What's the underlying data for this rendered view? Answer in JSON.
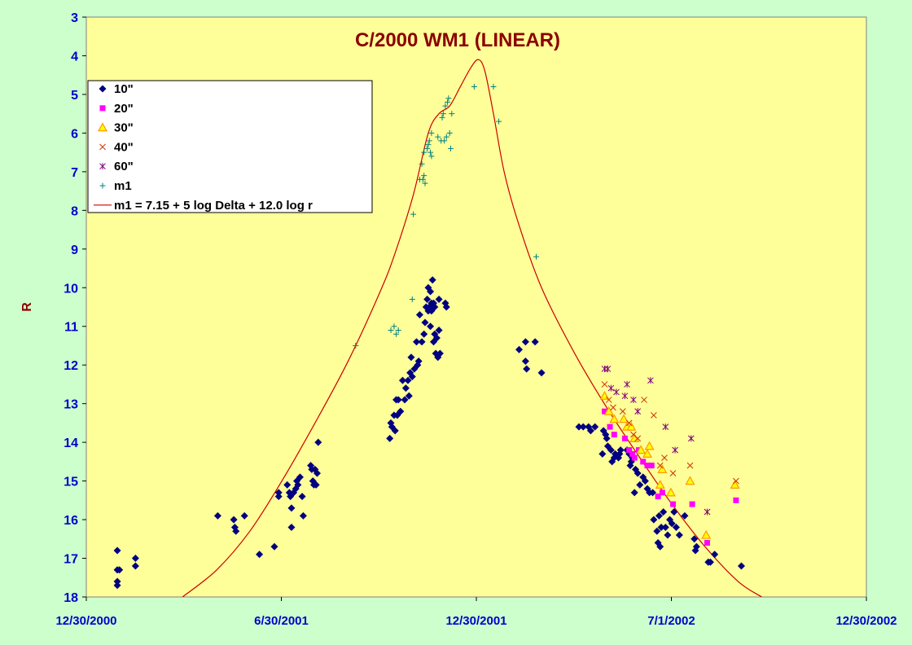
{
  "chart_data": {
    "type": "scatter",
    "title": "C/2000 WM1 (LINEAR)",
    "xlabel": "",
    "ylabel": "R",
    "x_axis": {
      "type": "date",
      "range": [
        "2000-12-30",
        "2002-12-30"
      ],
      "ticks": [
        "12/30/2000",
        "6/30/2001",
        "12/30/2001",
        "7/1/2002",
        "12/30/2002"
      ]
    },
    "y_axis": {
      "range": [
        3,
        18
      ],
      "reversed": true,
      "ticks": [
        "3",
        "4",
        "5",
        "6",
        "7",
        "8",
        "9",
        "10",
        "11",
        "12",
        "13",
        "14",
        "15",
        "16",
        "17",
        "18"
      ]
    },
    "grid": false,
    "legend_position": "top-left",
    "colors": {
      "plot_background": "#ffff99",
      "page_background": "#ccffcc",
      "curve": "#cc0000"
    },
    "series": [
      {
        "name": "10\"",
        "marker": "diamond",
        "color": "#000080",
        "points": [
          [
            "2001-01-28",
            16.8
          ],
          [
            "2001-01-28",
            17.3
          ],
          [
            "2001-01-28",
            17.6
          ],
          [
            "2001-01-28",
            17.7
          ],
          [
            "2001-01-30",
            17.3
          ],
          [
            "2001-02-14",
            17.0
          ],
          [
            "2001-02-14",
            17.2
          ],
          [
            "2001-05-02",
            15.9
          ],
          [
            "2001-05-17",
            16.0
          ],
          [
            "2001-05-18",
            16.2
          ],
          [
            "2001-05-19",
            16.3
          ],
          [
            "2001-05-27",
            15.9
          ],
          [
            "2001-06-10",
            16.9
          ],
          [
            "2001-06-24",
            16.7
          ],
          [
            "2001-06-28",
            15.3
          ],
          [
            "2001-06-28",
            15.4
          ],
          [
            "2001-07-06",
            15.1
          ],
          [
            "2001-07-08",
            15.3
          ],
          [
            "2001-07-09",
            15.4
          ],
          [
            "2001-07-10",
            15.7
          ],
          [
            "2001-07-10",
            16.2
          ],
          [
            "2001-07-12",
            15.3
          ],
          [
            "2001-07-14",
            15.2
          ],
          [
            "2001-07-15",
            15.0
          ],
          [
            "2001-07-16",
            15.1
          ],
          [
            "2001-07-18",
            14.9
          ],
          [
            "2001-07-20",
            15.4
          ],
          [
            "2001-07-21",
            15.9
          ],
          [
            "2001-07-28",
            14.6
          ],
          [
            "2001-07-29",
            14.7
          ],
          [
            "2001-07-30",
            15.0
          ],
          [
            "2001-07-31",
            15.1
          ],
          [
            "2001-08-01",
            14.7
          ],
          [
            "2001-08-02",
            15.1
          ],
          [
            "2001-08-03",
            14.8
          ],
          [
            "2001-08-04",
            14.0
          ],
          [
            "2001-10-10",
            13.9
          ],
          [
            "2001-10-11",
            13.5
          ],
          [
            "2001-10-12",
            13.6
          ],
          [
            "2001-10-14",
            13.3
          ],
          [
            "2001-10-15",
            13.7
          ],
          [
            "2001-10-16",
            12.9
          ],
          [
            "2001-10-17",
            13.3
          ],
          [
            "2001-10-18",
            12.9
          ],
          [
            "2001-10-20",
            13.2
          ],
          [
            "2001-10-22",
            12.4
          ],
          [
            "2001-10-24",
            12.9
          ],
          [
            "2001-10-25",
            12.6
          ],
          [
            "2001-10-27",
            12.4
          ],
          [
            "2001-10-28",
            12.8
          ],
          [
            "2001-10-29",
            12.2
          ],
          [
            "2001-10-30",
            11.8
          ],
          [
            "2001-10-31",
            12.3
          ],
          [
            "2001-11-02",
            12.1
          ],
          [
            "2001-11-04",
            11.4
          ],
          [
            "2001-11-05",
            12.0
          ],
          [
            "2001-11-06",
            11.9
          ],
          [
            "2001-11-07",
            10.7
          ],
          [
            "2001-11-09",
            11.4
          ],
          [
            "2001-11-11",
            11.2
          ],
          [
            "2001-11-12",
            10.9
          ],
          [
            "2001-11-13",
            10.5
          ],
          [
            "2001-11-14",
            10.3
          ],
          [
            "2001-11-15",
            10.0
          ],
          [
            "2001-11-15",
            10.6
          ],
          [
            "2001-11-16",
            10.5
          ],
          [
            "2001-11-17",
            11.0
          ],
          [
            "2001-11-17",
            10.1
          ],
          [
            "2001-11-18",
            10.4
          ],
          [
            "2001-11-18",
            10.6
          ],
          [
            "2001-11-19",
            9.8
          ],
          [
            "2001-11-20",
            10.4
          ],
          [
            "2001-11-20",
            11.4
          ],
          [
            "2001-11-21",
            10.5
          ],
          [
            "2001-11-21",
            11.2
          ],
          [
            "2001-11-22",
            11.7
          ],
          [
            "2001-11-23",
            11.3
          ],
          [
            "2001-11-24",
            11.8
          ],
          [
            "2001-11-25",
            10.3
          ],
          [
            "2001-11-25",
            11.1
          ],
          [
            "2001-11-26",
            11.7
          ],
          [
            "2001-12-01",
            10.4
          ],
          [
            "2001-12-02",
            10.5
          ],
          [
            "2002-02-08",
            11.6
          ],
          [
            "2002-02-14",
            11.4
          ],
          [
            "2002-02-14",
            11.9
          ],
          [
            "2002-02-15",
            12.1
          ],
          [
            "2002-02-23",
            11.4
          ],
          [
            "2002-03-01",
            12.2
          ],
          [
            "2002-04-05",
            13.6
          ],
          [
            "2002-04-09",
            13.6
          ],
          [
            "2002-04-14",
            13.6
          ],
          [
            "2002-04-16",
            13.7
          ],
          [
            "2002-04-20",
            13.6
          ],
          [
            "2002-04-27",
            14.3
          ],
          [
            "2002-04-28",
            13.7
          ],
          [
            "2002-04-30",
            13.8
          ],
          [
            "2002-05-01",
            13.9
          ],
          [
            "2002-05-02",
            14.1
          ],
          [
            "2002-05-05",
            14.2
          ],
          [
            "2002-05-06",
            14.5
          ],
          [
            "2002-05-08",
            14.4
          ],
          [
            "2002-05-09",
            14.3
          ],
          [
            "2002-05-12",
            14.4
          ],
          [
            "2002-05-13",
            14.3
          ],
          [
            "2002-05-14",
            14.2
          ],
          [
            "2002-05-20",
            14.2
          ],
          [
            "2002-05-22",
            14.3
          ],
          [
            "2002-05-23",
            14.6
          ],
          [
            "2002-05-24",
            14.5
          ],
          [
            "2002-05-25",
            14.4
          ],
          [
            "2002-05-27",
            15.3
          ],
          [
            "2002-05-28",
            14.7
          ],
          [
            "2002-05-30",
            14.8
          ],
          [
            "2002-06-01",
            15.1
          ],
          [
            "2002-06-04",
            14.9
          ],
          [
            "2002-06-06",
            15.0
          ],
          [
            "2002-06-08",
            15.2
          ],
          [
            "2002-06-10",
            15.3
          ],
          [
            "2002-06-13",
            15.3
          ],
          [
            "2002-06-14",
            16.0
          ],
          [
            "2002-06-17",
            16.3
          ],
          [
            "2002-06-18",
            16.6
          ],
          [
            "2002-06-19",
            15.9
          ],
          [
            "2002-06-20",
            16.7
          ],
          [
            "2002-06-21",
            16.2
          ],
          [
            "2002-06-23",
            15.8
          ],
          [
            "2002-06-25",
            16.2
          ],
          [
            "2002-06-27",
            16.4
          ],
          [
            "2002-06-29",
            16.0
          ],
          [
            "2002-07-01",
            16.1
          ],
          [
            "2002-07-03",
            15.8
          ],
          [
            "2002-07-05",
            16.2
          ],
          [
            "2002-07-08",
            16.4
          ],
          [
            "2002-07-13",
            15.9
          ],
          [
            "2002-07-22",
            16.5
          ],
          [
            "2002-07-23",
            16.8
          ],
          [
            "2002-07-24",
            16.7
          ],
          [
            "2002-08-04",
            17.1
          ],
          [
            "2002-08-06",
            17.1
          ],
          [
            "2002-08-10",
            16.9
          ],
          [
            "2002-09-04",
            17.2
          ]
        ]
      },
      {
        "name": "20\"",
        "marker": "square",
        "color": "#ff00ff",
        "points": [
          [
            "2002-04-29",
            13.2
          ],
          [
            "2002-05-04",
            13.6
          ],
          [
            "2002-05-08",
            13.8
          ],
          [
            "2002-05-18",
            13.9
          ],
          [
            "2002-05-22",
            14.2
          ],
          [
            "2002-05-25",
            14.3
          ],
          [
            "2002-05-27",
            14.4
          ],
          [
            "2002-05-31",
            14.2
          ],
          [
            "2002-06-04",
            14.5
          ],
          [
            "2002-06-08",
            14.6
          ],
          [
            "2002-06-12",
            14.6
          ],
          [
            "2002-06-18",
            15.4
          ],
          [
            "2002-06-22",
            15.3
          ],
          [
            "2002-07-02",
            15.6
          ],
          [
            "2002-07-20",
            15.6
          ],
          [
            "2002-08-03",
            16.6
          ],
          [
            "2002-08-30",
            15.5
          ]
        ]
      },
      {
        "name": "30\"",
        "marker": "triangle",
        "color": "#ff9900",
        "points": [
          [
            "2002-04-29",
            12.8
          ],
          [
            "2002-05-03",
            13.2
          ],
          [
            "2002-05-08",
            13.4
          ],
          [
            "2002-05-17",
            13.4
          ],
          [
            "2002-05-20",
            13.6
          ],
          [
            "2002-05-24",
            13.6
          ],
          [
            "2002-05-27",
            13.9
          ],
          [
            "2002-06-02",
            14.2
          ],
          [
            "2002-06-08",
            14.3
          ],
          [
            "2002-06-10",
            14.1
          ],
          [
            "2002-06-20",
            15.1
          ],
          [
            "2002-06-22",
            14.7
          ],
          [
            "2002-06-30",
            15.3
          ],
          [
            "2002-07-18",
            15.0
          ],
          [
            "2002-08-02",
            16.4
          ],
          [
            "2002-08-29",
            15.1
          ]
        ]
      },
      {
        "name": "40\"",
        "marker": "x",
        "color": "#cc3300",
        "points": [
          [
            "2002-04-29",
            12.5
          ],
          [
            "2002-05-03",
            12.9
          ],
          [
            "2002-05-07",
            13.1
          ],
          [
            "2002-05-16",
            13.2
          ],
          [
            "2002-05-22",
            13.5
          ],
          [
            "2002-05-26",
            13.8
          ],
          [
            "2002-05-30",
            13.9
          ],
          [
            "2002-06-05",
            12.9
          ],
          [
            "2002-06-14",
            13.3
          ],
          [
            "2002-06-20",
            14.6
          ],
          [
            "2002-06-24",
            14.4
          ],
          [
            "2002-07-02",
            14.8
          ],
          [
            "2002-07-18",
            14.6
          ],
          [
            "2002-08-03",
            15.8
          ],
          [
            "2002-08-30",
            15.0
          ]
        ]
      },
      {
        "name": "60\"",
        "marker": "star",
        "color": "#800080",
        "points": [
          [
            "2002-04-29",
            12.1
          ],
          [
            "2002-05-02",
            12.1
          ],
          [
            "2002-05-05",
            12.6
          ],
          [
            "2002-05-10",
            12.7
          ],
          [
            "2002-05-18",
            12.8
          ],
          [
            "2002-05-20",
            12.5
          ],
          [
            "2002-05-26",
            12.9
          ],
          [
            "2002-05-30",
            13.2
          ],
          [
            "2002-06-11",
            12.4
          ],
          [
            "2002-06-25",
            13.6
          ],
          [
            "2002-07-04",
            14.2
          ],
          [
            "2002-07-19",
            13.9
          ],
          [
            "2002-08-03",
            15.8
          ]
        ]
      },
      {
        "name": "m1",
        "marker": "plus",
        "color": "#008080",
        "points": [
          [
            "2001-09-08",
            11.5
          ],
          [
            "2001-10-11",
            11.1
          ],
          [
            "2001-10-14",
            11.0
          ],
          [
            "2001-10-16",
            11.2
          ],
          [
            "2001-10-18",
            11.1
          ],
          [
            "2001-10-31",
            10.3
          ],
          [
            "2001-11-01",
            8.1
          ],
          [
            "2001-11-07",
            7.2
          ],
          [
            "2001-11-09",
            6.8
          ],
          [
            "2001-11-10",
            7.2
          ],
          [
            "2001-11-11",
            7.1
          ],
          [
            "2001-11-12",
            7.3
          ],
          [
            "2001-11-11",
            6.5
          ],
          [
            "2001-11-14",
            6.4
          ],
          [
            "2001-11-15",
            6.3
          ],
          [
            "2001-11-16",
            6.2
          ],
          [
            "2001-11-17",
            6.5
          ],
          [
            "2001-11-18",
            6.6
          ],
          [
            "2001-11-18",
            6.0
          ],
          [
            "2001-11-24",
            6.1
          ],
          [
            "2001-11-27",
            6.2
          ],
          [
            "2001-11-28",
            5.6
          ],
          [
            "2001-11-29",
            5.5
          ],
          [
            "2001-11-30",
            6.2
          ],
          [
            "2001-12-01",
            5.3
          ],
          [
            "2001-12-02",
            6.1
          ],
          [
            "2001-12-03",
            5.2
          ],
          [
            "2001-12-04",
            5.1
          ],
          [
            "2001-12-05",
            6.0
          ],
          [
            "2001-12-06",
            6.4
          ],
          [
            "2001-12-07",
            5.5
          ],
          [
            "2001-12-28",
            4.8
          ],
          [
            "2002-01-15",
            4.8
          ],
          [
            "2002-01-20",
            5.7
          ],
          [
            "2002-02-24",
            9.2
          ]
        ]
      },
      {
        "name": "m1 = 7.15 + 5 log Delta + 12.0 log r",
        "marker": "line",
        "color": "#cc0000",
        "points": [
          [
            "2001-03-30",
            18.0
          ],
          [
            "2001-05-01",
            17.3
          ],
          [
            "2001-06-01",
            16.3
          ],
          [
            "2001-07-01",
            15.0
          ],
          [
            "2001-08-01",
            13.5
          ],
          [
            "2001-09-01",
            11.9
          ],
          [
            "2001-10-01",
            10.1
          ],
          [
            "2001-10-15",
            9.1
          ],
          [
            "2001-11-01",
            7.6
          ],
          [
            "2001-11-15",
            6.0
          ],
          [
            "2001-11-25",
            5.5
          ],
          [
            "2001-12-05",
            5.3
          ],
          [
            "2001-12-15",
            4.8
          ],
          [
            "2001-12-25",
            4.3
          ],
          [
            "2002-01-01",
            4.1
          ],
          [
            "2002-01-07",
            4.4
          ],
          [
            "2002-01-15",
            5.5
          ],
          [
            "2002-01-25",
            7.0
          ],
          [
            "2002-02-07",
            8.3
          ],
          [
            "2002-03-01",
            10.0
          ],
          [
            "2002-04-01",
            11.7
          ],
          [
            "2002-05-01",
            13.1
          ],
          [
            "2002-06-01",
            14.4
          ],
          [
            "2002-07-01",
            15.6
          ],
          [
            "2002-08-01",
            16.7
          ],
          [
            "2002-09-01",
            17.6
          ],
          [
            "2002-09-23",
            18.0
          ]
        ]
      }
    ]
  }
}
